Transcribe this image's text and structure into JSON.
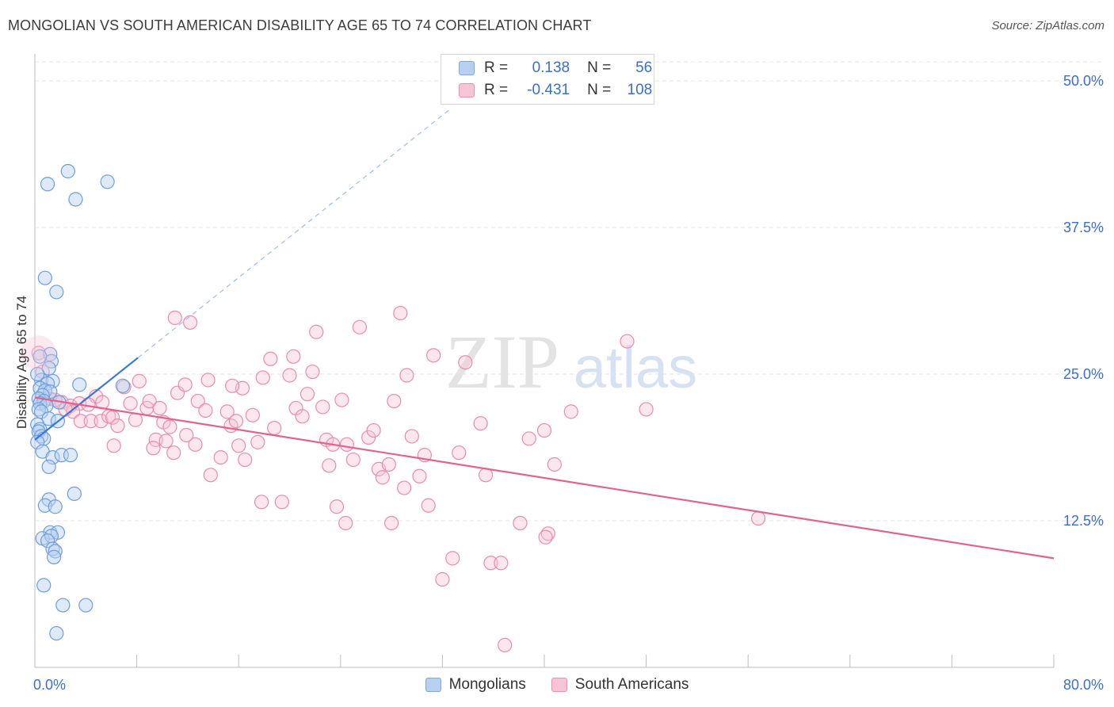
{
  "title": "MONGOLIAN VS SOUTH AMERICAN DISABILITY AGE 65 TO 74 CORRELATION CHART",
  "source": "Source: ZipAtlas.com",
  "watermark": {
    "zip": "ZIP",
    "atlas": "atlas"
  },
  "legend": {
    "r_label": "R =",
    "n_label": "N =",
    "entries": [
      {
        "name": "Mongolians",
        "r": "0.138",
        "n": "56",
        "color": "#7fa8e0",
        "fill": "#b7d0f2"
      },
      {
        "name": "South Americans",
        "r": "-0.431",
        "n": "108",
        "color": "#ec8fae",
        "fill": "#f7c4d5"
      }
    ]
  },
  "chart_data": {
    "type": "scatter",
    "title": "MONGOLIAN VS SOUTH AMERICAN DISABILITY AGE 65 TO 74 CORRELATION CHART",
    "ylabel": "Disability Age 65 to 74",
    "xlabel": "",
    "xlim": [
      0,
      80
    ],
    "ylim": [
      0,
      52.3
    ],
    "x_tick_labels": [
      "0.0%",
      "80.0%"
    ],
    "y_ticks": [
      12.5,
      25.0,
      37.5,
      50.0
    ],
    "y_tick_labels": [
      "12.5%",
      "25.0%",
      "37.5%",
      "50.0%"
    ],
    "grid": true,
    "series": [
      {
        "name": "Mongolians",
        "color": "#3a78d4",
        "trend": {
          "x": [
            0.0,
            8.1
          ],
          "y": [
            19.4,
            26.4
          ],
          "dashed_to": {
            "x": 32.5,
            "y": 47.5
          }
        },
        "points": [
          [
            2.6,
            42.3
          ],
          [
            1.0,
            41.2
          ],
          [
            5.7,
            41.4
          ],
          [
            3.2,
            39.9
          ],
          [
            0.8,
            33.2
          ],
          [
            1.7,
            32.0
          ],
          [
            1.2,
            26.7
          ],
          [
            1.3,
            26.1
          ],
          [
            1.1,
            25.5
          ],
          [
            0.5,
            24.5
          ],
          [
            1.4,
            24.4
          ],
          [
            1.0,
            24.2
          ],
          [
            3.5,
            24.1
          ],
          [
            6.9,
            24.0
          ],
          [
            0.4,
            23.8
          ],
          [
            0.8,
            23.6
          ],
          [
            1.2,
            23.5
          ],
          [
            0.6,
            23.2
          ],
          [
            0.3,
            22.9
          ],
          [
            0.7,
            22.7
          ],
          [
            0.4,
            22.5
          ],
          [
            0.9,
            22.3
          ],
          [
            0.3,
            22.0
          ],
          [
            0.5,
            21.8
          ],
          [
            1.1,
            21.2
          ],
          [
            1.8,
            21.0
          ],
          [
            0.2,
            20.7
          ],
          [
            0.4,
            20.3
          ],
          [
            0.3,
            20.1
          ],
          [
            0.5,
            19.7
          ],
          [
            0.7,
            19.5
          ],
          [
            0.2,
            19.2
          ],
          [
            0.6,
            18.4
          ],
          [
            1.4,
            17.9
          ],
          [
            2.1,
            18.1
          ],
          [
            2.8,
            18.1
          ],
          [
            1.1,
            17.1
          ],
          [
            3.1,
            14.8
          ],
          [
            1.1,
            14.3
          ],
          [
            0.8,
            13.8
          ],
          [
            1.6,
            13.7
          ],
          [
            1.2,
            11.5
          ],
          [
            1.8,
            11.5
          ],
          [
            0.6,
            11.0
          ],
          [
            1.3,
            11.2
          ],
          [
            1.0,
            10.8
          ],
          [
            1.4,
            10.1
          ],
          [
            1.6,
            9.9
          ],
          [
            1.5,
            9.4
          ],
          [
            0.7,
            7.0
          ],
          [
            2.2,
            5.3
          ],
          [
            4.0,
            5.3
          ],
          [
            1.7,
            2.9
          ],
          [
            0.2,
            25.0
          ],
          [
            0.4,
            26.5
          ],
          [
            1.9,
            22.6
          ]
        ]
      },
      {
        "name": "South Americans",
        "color": "#e0648f",
        "trend": {
          "x": [
            0.0,
            80.0
          ],
          "y": [
            23.0,
            9.3
          ]
        },
        "points": [
          [
            0.3,
            26.8
          ],
          [
            0.6,
            25.2
          ],
          [
            1.2,
            22.9
          ],
          [
            2.1,
            22.6
          ],
          [
            2.8,
            22.3
          ],
          [
            3.5,
            22.5
          ],
          [
            4.8,
            23.1
          ],
          [
            3.0,
            21.8
          ],
          [
            4.2,
            22.4
          ],
          [
            3.6,
            21.0
          ],
          [
            4.4,
            21.0
          ],
          [
            5.2,
            21.0
          ],
          [
            5.8,
            21.4
          ],
          [
            6.1,
            21.3
          ],
          [
            6.5,
            20.6
          ],
          [
            7.5,
            22.5
          ],
          [
            7.9,
            21.1
          ],
          [
            8.2,
            24.4
          ],
          [
            8.8,
            22.1
          ],
          [
            9.0,
            22.7
          ],
          [
            7.0,
            23.9
          ],
          [
            6.2,
            18.9
          ],
          [
            9.5,
            19.4
          ],
          [
            10.1,
            20.9
          ],
          [
            10.6,
            20.5
          ],
          [
            9.3,
            18.7
          ],
          [
            10.3,
            19.3
          ],
          [
            10.9,
            18.3
          ],
          [
            11.2,
            23.4
          ],
          [
            11.8,
            24.1
          ],
          [
            11.0,
            29.8
          ],
          [
            12.2,
            29.4
          ],
          [
            12.8,
            22.7
          ],
          [
            13.4,
            21.9
          ],
          [
            13.6,
            24.5
          ],
          [
            12.6,
            19.0
          ],
          [
            11.9,
            19.8
          ],
          [
            14.6,
            17.9
          ],
          [
            15.1,
            21.8
          ],
          [
            15.4,
            20.6
          ],
          [
            15.8,
            21.0
          ],
          [
            16.3,
            23.8
          ],
          [
            16.0,
            18.9
          ],
          [
            16.5,
            17.7
          ],
          [
            17.1,
            21.5
          ],
          [
            17.5,
            19.2
          ],
          [
            17.9,
            24.7
          ],
          [
            18.5,
            26.3
          ],
          [
            18.8,
            20.4
          ],
          [
            17.8,
            14.1
          ],
          [
            19.4,
            14.1
          ],
          [
            20.0,
            24.9
          ],
          [
            20.5,
            22.1
          ],
          [
            20.3,
            26.5
          ],
          [
            21.0,
            21.4
          ],
          [
            21.4,
            23.3
          ],
          [
            21.8,
            25.2
          ],
          [
            22.1,
            28.6
          ],
          [
            22.6,
            22.2
          ],
          [
            22.9,
            19.4
          ],
          [
            23.4,
            19.0
          ],
          [
            23.1,
            17.2
          ],
          [
            23.7,
            13.7
          ],
          [
            24.1,
            22.8
          ],
          [
            24.5,
            19.0
          ],
          [
            24.4,
            12.3
          ],
          [
            25.0,
            17.7
          ],
          [
            25.5,
            29.0
          ],
          [
            26.2,
            19.6
          ],
          [
            26.6,
            20.2
          ],
          [
            27.0,
            16.9
          ],
          [
            27.3,
            16.2
          ],
          [
            27.8,
            17.3
          ],
          [
            28.2,
            22.7
          ],
          [
            28.7,
            30.2
          ],
          [
            29.2,
            24.9
          ],
          [
            29.0,
            15.3
          ],
          [
            29.6,
            19.7
          ],
          [
            30.2,
            16.3
          ],
          [
            30.6,
            18.1
          ],
          [
            30.9,
            13.8
          ],
          [
            31.3,
            26.6
          ],
          [
            28.0,
            12.3
          ],
          [
            32.0,
            7.5
          ],
          [
            32.8,
            9.3
          ],
          [
            33.3,
            18.3
          ],
          [
            33.8,
            26.0
          ],
          [
            35.0,
            20.8
          ],
          [
            35.4,
            16.4
          ],
          [
            35.8,
            8.9
          ],
          [
            36.6,
            8.9
          ],
          [
            36.9,
            1.9
          ],
          [
            38.8,
            19.5
          ],
          [
            40.0,
            20.2
          ],
          [
            38.1,
            12.3
          ],
          [
            40.3,
            11.4
          ],
          [
            40.1,
            11.1
          ],
          [
            40.8,
            17.3
          ],
          [
            42.1,
            21.8
          ],
          [
            46.5,
            27.8
          ],
          [
            56.8,
            12.7
          ],
          [
            48.0,
            22.0
          ],
          [
            13.8,
            16.4
          ],
          [
            15.5,
            24.0
          ],
          [
            9.8,
            22.1
          ],
          [
            5.3,
            22.6
          ],
          [
            2.4,
            22.0
          ],
          [
            1.6,
            22.8
          ]
        ]
      }
    ]
  }
}
